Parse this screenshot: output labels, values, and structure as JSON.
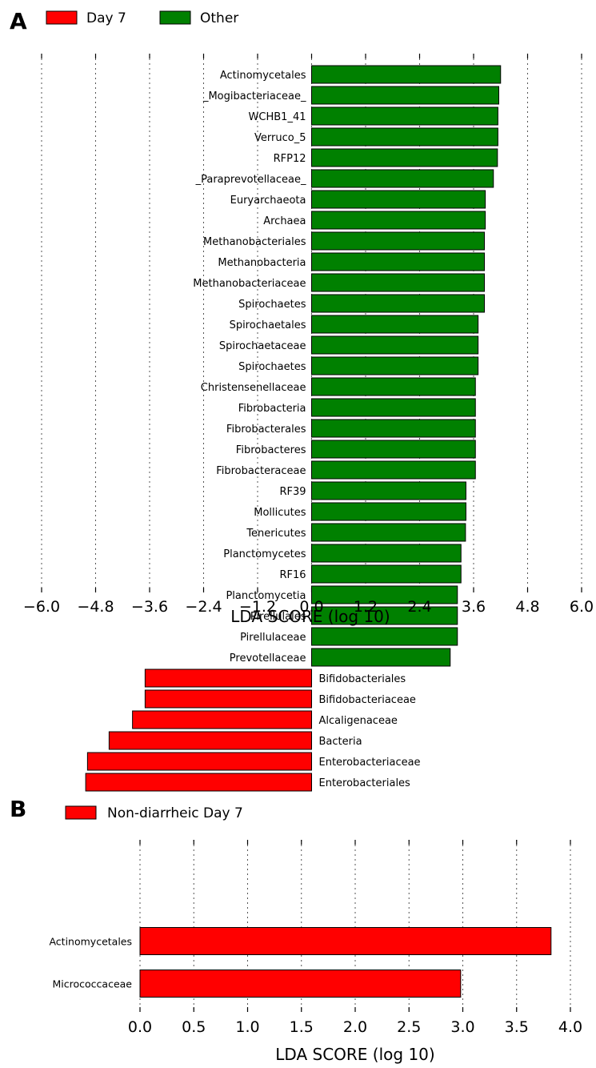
{
  "colors": {
    "day7": "#ff0000",
    "other": "#008000",
    "bar_stroke": "#000000"
  },
  "panels": [
    {
      "letter": "A",
      "legend": [
        {
          "name": "Day 7",
          "color": "#ff0000"
        },
        {
          "name": "Other",
          "color": "#008000"
        }
      ]
    },
    {
      "letter": "B",
      "legend": [
        {
          "name": "Non-diarrheic Day 7",
          "color": "#ff0000"
        }
      ]
    }
  ],
  "chart_data": [
    {
      "type": "bar",
      "orientation": "horizontal",
      "xlabel": "LDA SCORE (log 10)",
      "xlim": [
        -6.0,
        6.0
      ],
      "xticks": [
        -6.0,
        -4.8,
        -3.6,
        -2.4,
        -1.2,
        0.0,
        1.2,
        2.4,
        3.6,
        4.8,
        6.0
      ],
      "xtick_labels": [
        "−6.0",
        "−4.8",
        "−3.6",
        "−2.4",
        "−1.2",
        "0.0",
        "1.2",
        "2.4",
        "3.6",
        "4.8",
        "6.0"
      ],
      "grid": "vertical dotted",
      "legend_position": "top-left",
      "bars": [
        {
          "label": "Actinomycetales",
          "value": 4.2,
          "group": "Other"
        },
        {
          "label": "_Mogibacteriaceae_",
          "value": 4.16,
          "group": "Other"
        },
        {
          "label": "WCHB1_41",
          "value": 4.14,
          "group": "Other"
        },
        {
          "label": "Verruco_5",
          "value": 4.14,
          "group": "Other"
        },
        {
          "label": "RFP12",
          "value": 4.13,
          "group": "Other"
        },
        {
          "label": "_Paraprevotellaceae_",
          "value": 4.04,
          "group": "Other"
        },
        {
          "label": "Euryarchaeota",
          "value": 3.86,
          "group": "Other"
        },
        {
          "label": "Archaea",
          "value": 3.86,
          "group": "Other"
        },
        {
          "label": "Methanobacteriales",
          "value": 3.84,
          "group": "Other"
        },
        {
          "label": "Methanobacteria",
          "value": 3.84,
          "group": "Other"
        },
        {
          "label": "Methanobacteriaceae",
          "value": 3.84,
          "group": "Other"
        },
        {
          "label": "Spirochaetes",
          "value": 3.84,
          "group": "Other"
        },
        {
          "label": "Spirochaetales",
          "value": 3.7,
          "group": "Other"
        },
        {
          "label": "Spirochaetaceae",
          "value": 3.7,
          "group": "Other"
        },
        {
          "label": "Spirochaetes",
          "value": 3.7,
          "group": "Other"
        },
        {
          "label": "Christensenellaceae",
          "value": 3.64,
          "group": "Other"
        },
        {
          "label": "Fibrobacteria",
          "value": 3.64,
          "group": "Other"
        },
        {
          "label": "Fibrobacterales",
          "value": 3.64,
          "group": "Other"
        },
        {
          "label": "Fibrobacteres",
          "value": 3.64,
          "group": "Other"
        },
        {
          "label": "Fibrobacteraceae",
          "value": 3.64,
          "group": "Other"
        },
        {
          "label": "RF39",
          "value": 3.43,
          "group": "Other"
        },
        {
          "label": "Mollicutes",
          "value": 3.43,
          "group": "Other"
        },
        {
          "label": "Tenericutes",
          "value": 3.42,
          "group": "Other"
        },
        {
          "label": "Planctomycetes",
          "value": 3.32,
          "group": "Other"
        },
        {
          "label": "RF16",
          "value": 3.32,
          "group": "Other"
        },
        {
          "label": "Planctomycetia",
          "value": 3.24,
          "group": "Other"
        },
        {
          "label": "Pirellulales",
          "value": 3.24,
          "group": "Other"
        },
        {
          "label": "Pirellulaceae",
          "value": 3.24,
          "group": "Other"
        },
        {
          "label": "Prevotellaceae",
          "value": 3.08,
          "group": "Other"
        },
        {
          "label": "Bifidobacteriales",
          "value": -3.7,
          "group": "Day 7"
        },
        {
          "label": "Bifidobacteriaceae",
          "value": -3.7,
          "group": "Day 7"
        },
        {
          "label": "Alcaligenaceae",
          "value": -3.98,
          "group": "Day 7"
        },
        {
          "label": "Bacteria",
          "value": -4.5,
          "group": "Day 7"
        },
        {
          "label": "Enterobacteriaceae",
          "value": -4.98,
          "group": "Day 7"
        },
        {
          "label": "Enterobacteriales",
          "value": -5.02,
          "group": "Day 7"
        }
      ]
    },
    {
      "type": "bar",
      "orientation": "horizontal",
      "xlabel": "LDA SCORE (log 10)",
      "xlim": [
        0.0,
        4.0
      ],
      "xticks": [
        0.0,
        0.5,
        1.0,
        1.5,
        2.0,
        2.5,
        3.0,
        3.5,
        4.0
      ],
      "xtick_labels": [
        "0.0",
        "0.5",
        "1.0",
        "1.5",
        "2.0",
        "2.5",
        "3.0",
        "3.5",
        "4.0"
      ],
      "grid": "vertical dotted",
      "legend_position": "top-left",
      "bars": [
        {
          "label": "Actinomycetales",
          "value": 3.82,
          "group": "Non-diarrheic Day 7"
        },
        {
          "label": "Micrococcaceae",
          "value": 2.98,
          "group": "Non-diarrheic Day 7"
        }
      ]
    }
  ]
}
